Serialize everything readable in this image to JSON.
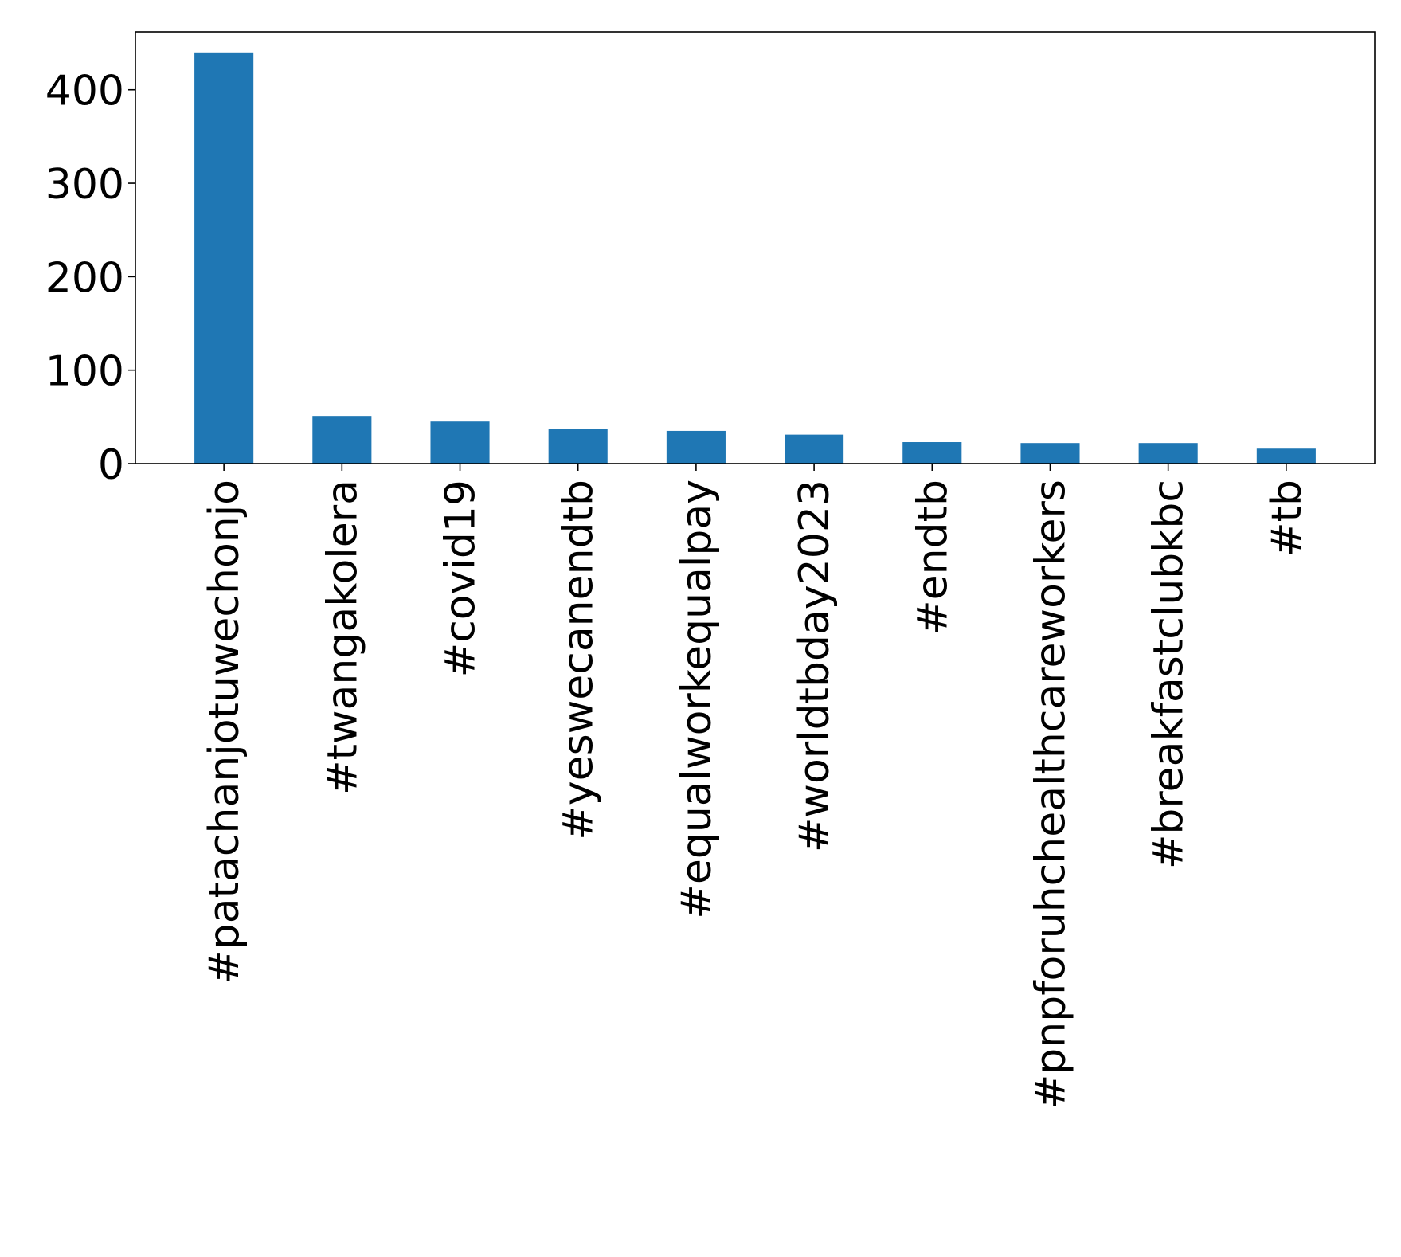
{
  "chart_data": {
    "type": "bar",
    "title": "",
    "xlabel": "",
    "ylabel": "",
    "categories": [
      "#patachanjotuwechonjo",
      "#twangakolera",
      "#covid19",
      "#yeswecanendtb",
      "#equalworkequalpay",
      "#worldtbday2023",
      "#endtb",
      "#pnpforuhchealthcareworkers",
      "#breakfastclubkbc",
      "#tb"
    ],
    "values": [
      440,
      51,
      45,
      37,
      35,
      31,
      23,
      22,
      22,
      16
    ],
    "ylim": [
      0,
      462
    ],
    "yticks": [
      0,
      100,
      200,
      300,
      400
    ],
    "ytick_labels": [
      "0",
      "100",
      "200",
      "300",
      "400"
    ],
    "grid": false,
    "legend": "none",
    "bar_color": "#1f77b4"
  }
}
